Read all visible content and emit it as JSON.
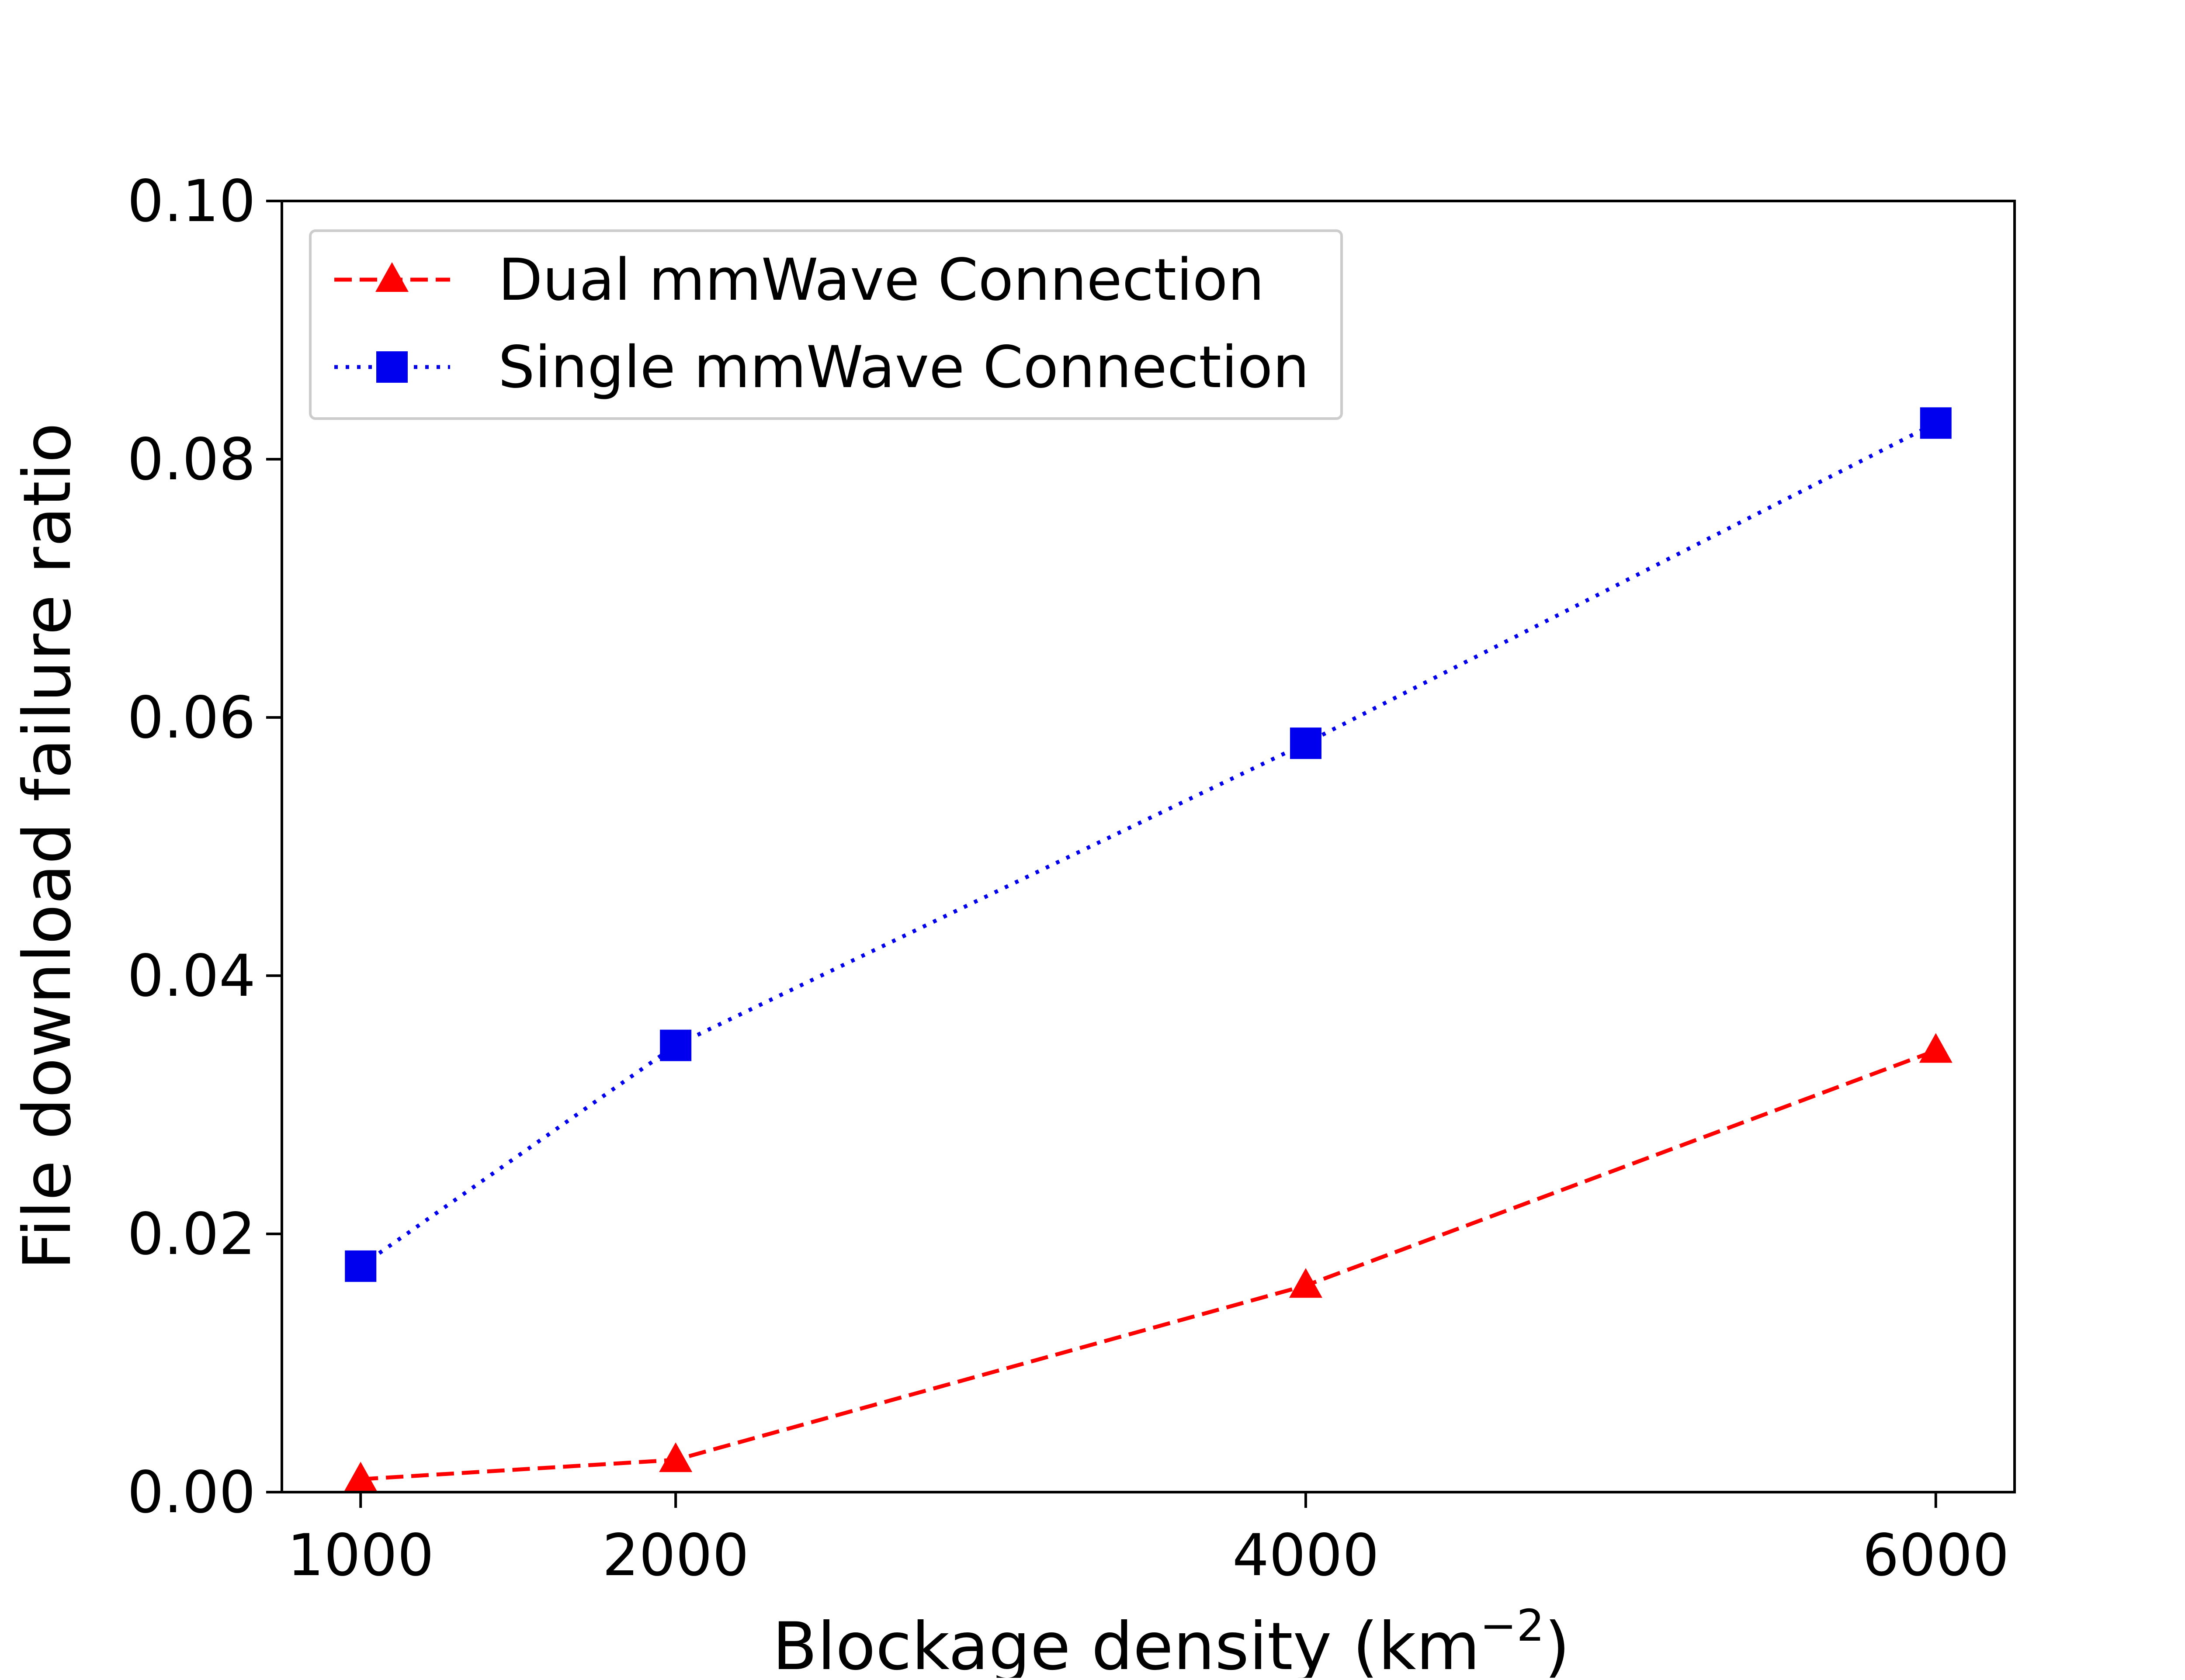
{
  "chart_data": {
    "type": "line",
    "title": "",
    "xlabel": "Blockage density (km",
    "xlabel_unit_exponent": "−2",
    "xlabel_close": ")",
    "ylabel": "File download failure ratio",
    "x": [
      1000,
      2000,
      4000,
      6000
    ],
    "xticks": [
      "1000",
      "2000",
      "4000",
      "6000"
    ],
    "yticks": [
      "0.00",
      "0.02",
      "0.04",
      "0.06",
      "0.08",
      "0.10"
    ],
    "ylim": [
      0,
      0.1
    ],
    "xlim": [
      750,
      6250
    ],
    "grid": false,
    "legend_position": "top-left",
    "series": [
      {
        "name": "Dual mmWave Connection",
        "values": [
          0.001,
          0.0025,
          0.016,
          0.0342
        ],
        "color": "#ff0000",
        "linestyle": "dashed",
        "marker": "triangle"
      },
      {
        "name": "Single mmWave Connection",
        "values": [
          0.0175,
          0.0346,
          0.058,
          0.0828
        ],
        "color": "#0000ee",
        "linestyle": "dotted",
        "marker": "square"
      }
    ]
  }
}
